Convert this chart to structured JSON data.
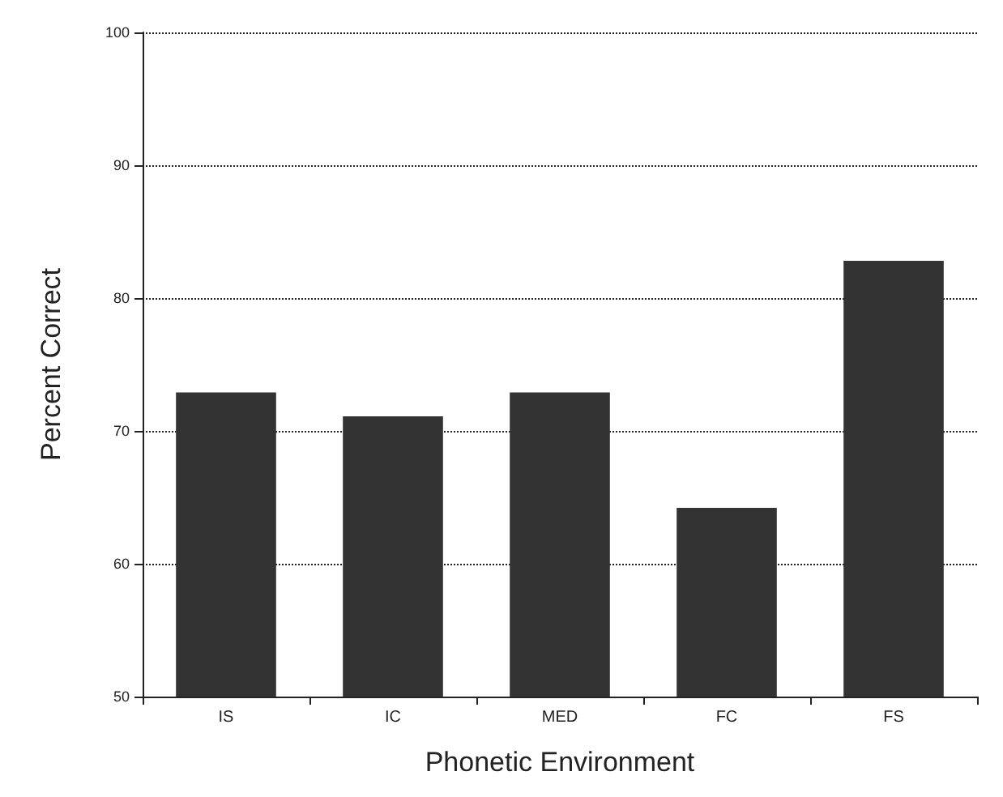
{
  "chart_data": {
    "type": "bar",
    "xlabel": "Phonetic Environment",
    "ylabel": "Percent Correct",
    "categories": [
      "IS",
      "IC",
      "MED",
      "FC",
      "FS"
    ],
    "values": [
      72.9,
      71.1,
      72.9,
      64.2,
      82.8
    ],
    "color": "#333333",
    "ylim": [
      50,
      100
    ],
    "yticks": [
      50,
      60,
      70,
      80,
      90,
      100
    ],
    "grid": "y",
    "line_style": "dotted"
  }
}
